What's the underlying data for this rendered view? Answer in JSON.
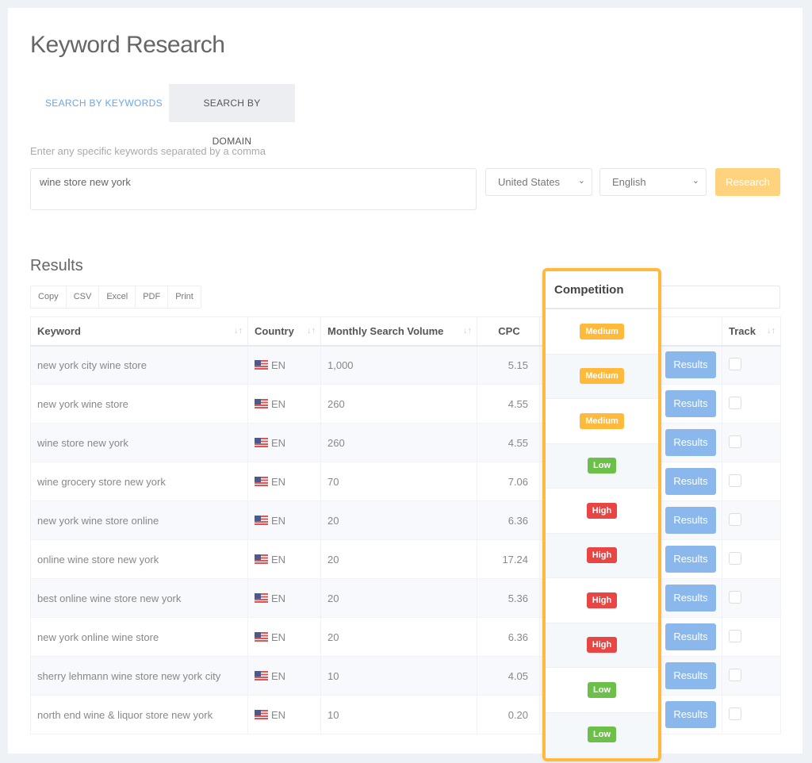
{
  "page": {
    "title": "Keyword Research"
  },
  "tabs": [
    {
      "label": "SEARCH BY KEYWORDS",
      "active": true
    },
    {
      "label": "SEARCH BY DOMAIN",
      "active": false
    }
  ],
  "form": {
    "hint": "Enter any specific keywords separated by a comma",
    "keywords": "wine store new york",
    "country": "United States",
    "language": "English",
    "research_label": "Research"
  },
  "results": {
    "title": "Results",
    "export": [
      "Copy",
      "CSV",
      "Excel",
      "PDF",
      "Print"
    ],
    "columns": {
      "keyword": "Keyword",
      "country": "Country",
      "volume": "Monthly Search Volume",
      "cpc": "CPC",
      "competition": "Competition",
      "results": "",
      "track": "Track"
    },
    "results_label": "Results",
    "rows": [
      {
        "keyword": "new york city wine store",
        "lang": "EN",
        "volume": "1,000",
        "cpc": "5.15",
        "competition": "Medium"
      },
      {
        "keyword": "new york wine store",
        "lang": "EN",
        "volume": "260",
        "cpc": "4.55",
        "competition": "Medium"
      },
      {
        "keyword": "wine store new york",
        "lang": "EN",
        "volume": "260",
        "cpc": "4.55",
        "competition": "Medium"
      },
      {
        "keyword": "wine grocery store new york",
        "lang": "EN",
        "volume": "70",
        "cpc": "7.06",
        "competition": "Low"
      },
      {
        "keyword": "new york wine store online",
        "lang": "EN",
        "volume": "20",
        "cpc": "6.36",
        "competition": "High"
      },
      {
        "keyword": "online wine store new york",
        "lang": "EN",
        "volume": "20",
        "cpc": "17.24",
        "competition": "High"
      },
      {
        "keyword": "best online wine store new york",
        "lang": "EN",
        "volume": "20",
        "cpc": "5.36",
        "competition": "High"
      },
      {
        "keyword": "new york online wine store",
        "lang": "EN",
        "volume": "20",
        "cpc": "6.36",
        "competition": "High"
      },
      {
        "keyword": "sherry lehmann wine store new york city",
        "lang": "EN",
        "volume": "10",
        "cpc": "4.05",
        "competition": "Low"
      },
      {
        "keyword": "north end wine & liquor store new york",
        "lang": "EN",
        "volume": "10",
        "cpc": "0.20",
        "competition": "Low"
      }
    ]
  },
  "colors": {
    "Medium": "#ffb93b",
    "Low": "#6cc04a",
    "High": "#e84545",
    "highlight": "#ffb93b",
    "accent": "#6aa6e8"
  }
}
